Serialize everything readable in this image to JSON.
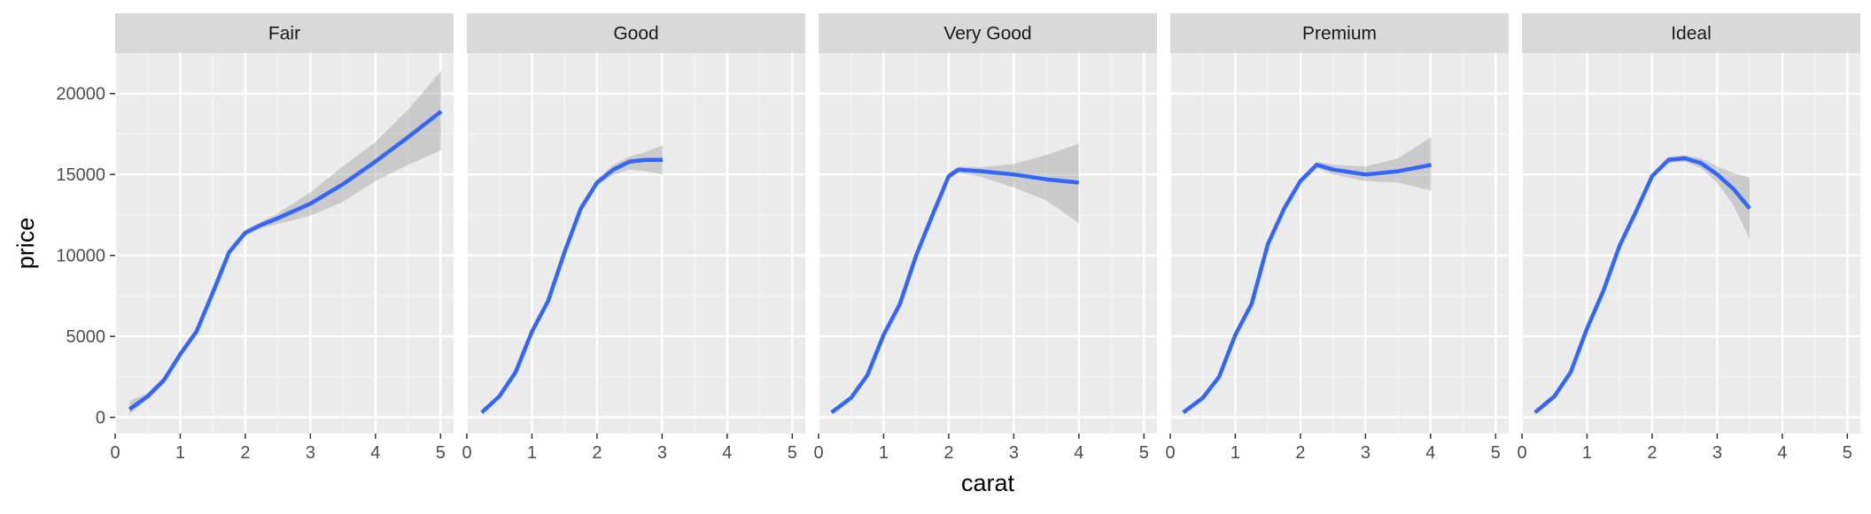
{
  "chart_data": {
    "type": "line",
    "facet_variable": "cut",
    "xlabel": "carat",
    "ylabel": "price",
    "xlim": [
      0,
      5.2
    ],
    "ylim": [
      -1000,
      22500
    ],
    "x_ticks": [
      0,
      1,
      2,
      3,
      4,
      5
    ],
    "x_tick_labels": [
      "0",
      "1",
      "2",
      "3",
      "4",
      "5"
    ],
    "y_ticks": [
      0,
      5000,
      10000,
      15000,
      20000
    ],
    "y_tick_labels": [
      "0",
      "5000",
      "10000",
      "15000",
      "20000"
    ],
    "grid": true,
    "panel_background": "#ebebeb",
    "strip_background": "#d9d9d9",
    "line_color": "#3366ff",
    "ribbon_color": "#999999",
    "panels": [
      {
        "label": "Fair",
        "x": [
          0.22,
          0.5,
          0.75,
          1.0,
          1.25,
          1.5,
          1.75,
          2.0,
          2.25,
          2.5,
          3.0,
          3.5,
          4.0,
          4.5,
          5.01
        ],
        "y": [
          500,
          1300,
          2300,
          3900,
          5300,
          7700,
          10200,
          11400,
          11900,
          12300,
          13200,
          14400,
          15800,
          17300,
          18900
        ],
        "lower": [
          200,
          1100,
          2100,
          3700,
          5100,
          7500,
          10000,
          11200,
          11700,
          11950,
          12450,
          13300,
          14600,
          15600,
          16500
        ],
        "upper": [
          1000,
          1500,
          2500,
          4100,
          5500,
          7900,
          10400,
          11600,
          12100,
          12600,
          13900,
          15500,
          17000,
          19000,
          21400
        ]
      },
      {
        "label": "Good",
        "x": [
          0.23,
          0.5,
          0.75,
          1.0,
          1.25,
          1.5,
          1.75,
          2.0,
          2.25,
          2.5,
          2.75,
          3.01
        ],
        "y": [
          300,
          1300,
          2800,
          5300,
          7200,
          10200,
          12900,
          14500,
          15300,
          15800,
          15900,
          15900
        ],
        "lower": [
          200,
          1200,
          2700,
          5200,
          7050,
          10050,
          12750,
          14300,
          15000,
          15300,
          15200,
          15000
        ],
        "upper": [
          400,
          1400,
          2900,
          5400,
          7350,
          10350,
          13050,
          14700,
          15600,
          16100,
          16400,
          16800
        ]
      },
      {
        "label": "Very Good",
        "x": [
          0.2,
          0.5,
          0.75,
          1.0,
          1.25,
          1.5,
          1.75,
          2.0,
          2.15,
          2.5,
          3.0,
          3.5,
          4.0
        ],
        "y": [
          300,
          1200,
          2600,
          5100,
          7000,
          10000,
          12500,
          14900,
          15300,
          15200,
          15000,
          14700,
          14500
        ],
        "lower": [
          200,
          1100,
          2500,
          5000,
          6850,
          9850,
          12350,
          14700,
          15100,
          14850,
          14200,
          13400,
          12000
        ],
        "upper": [
          400,
          1300,
          2700,
          5200,
          7150,
          10150,
          12650,
          15100,
          15500,
          15450,
          15650,
          16200,
          16900
        ]
      },
      {
        "label": "Premium",
        "x": [
          0.2,
          0.5,
          0.75,
          1.0,
          1.25,
          1.5,
          1.75,
          2.0,
          2.25,
          2.5,
          3.0,
          3.5,
          4.01
        ],
        "y": [
          300,
          1200,
          2500,
          5100,
          7000,
          10700,
          12900,
          14600,
          15600,
          15300,
          15000,
          15200,
          15600
        ],
        "lower": [
          200,
          1100,
          2400,
          5000,
          6850,
          10550,
          12750,
          14400,
          15400,
          15000,
          14600,
          14500,
          14000
        ],
        "upper": [
          400,
          1300,
          2600,
          5200,
          7150,
          10850,
          13050,
          14800,
          15800,
          15600,
          15500,
          16000,
          17300
        ]
      },
      {
        "label": "Ideal",
        "x": [
          0.2,
          0.5,
          0.75,
          1.0,
          1.25,
          1.5,
          1.75,
          2.0,
          2.25,
          2.5,
          2.75,
          3.0,
          3.25,
          3.5
        ],
        "y": [
          300,
          1300,
          2800,
          5500,
          7800,
          10600,
          12700,
          14900,
          15900,
          16000,
          15700,
          15000,
          14100,
          12900
        ],
        "lower": [
          200,
          1200,
          2700,
          5400,
          7650,
          10450,
          12550,
          14750,
          15700,
          15800,
          15400,
          14500,
          13100,
          11000
        ],
        "upper": [
          400,
          1400,
          2900,
          5600,
          7950,
          10750,
          12850,
          15050,
          16100,
          16200,
          16000,
          15500,
          15100,
          14800
        ]
      }
    ]
  }
}
